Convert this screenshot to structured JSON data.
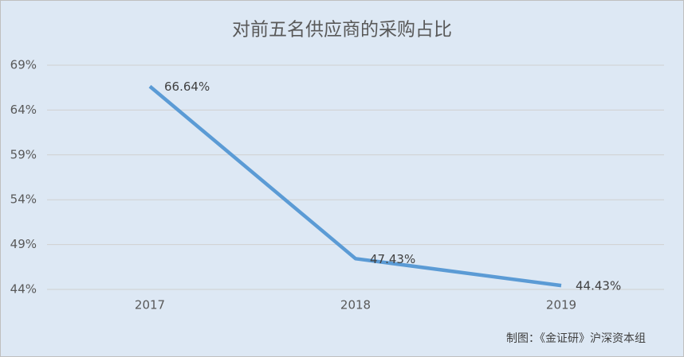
{
  "chart_data": {
    "type": "line",
    "title": "对前五名供应商的采购占比",
    "categories": [
      "2017",
      "2018",
      "2019"
    ],
    "series": [
      {
        "name": "采购占比",
        "color": "#5b9bd5",
        "values": [
          66.64,
          47.43,
          44.43
        ],
        "value_labels": [
          "66.64%",
          "47.43%",
          "44.43%"
        ]
      }
    ],
    "ylim": [
      44,
      69
    ],
    "yticks": [
      {
        "value": 44,
        "label": "44%"
      },
      {
        "value": 49,
        "label": "49%"
      },
      {
        "value": 54,
        "label": "54%"
      },
      {
        "value": 59,
        "label": "59%"
      },
      {
        "value": 64,
        "label": "64%"
      },
      {
        "value": 69,
        "label": "69%"
      }
    ],
    "grid": true,
    "annotation": "制图：《金证研》沪深资本组"
  }
}
